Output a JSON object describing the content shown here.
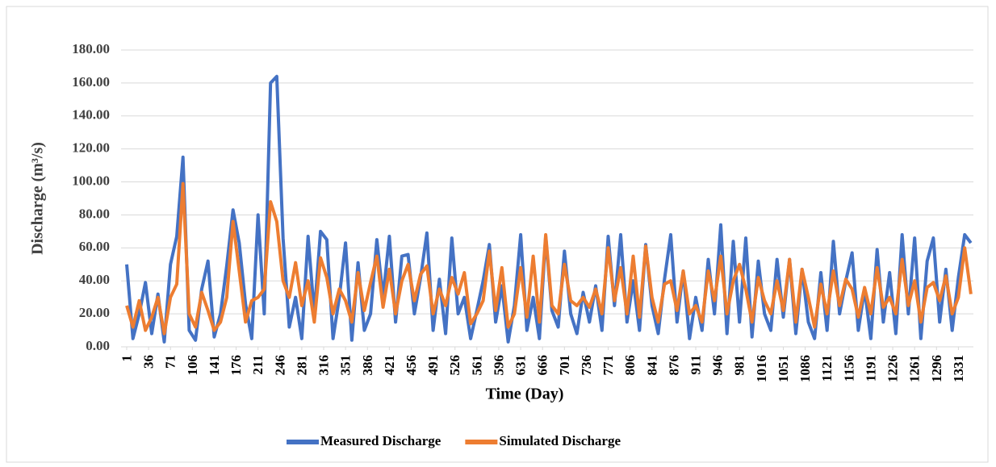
{
  "chart_data": {
    "type": "line",
    "y_label": "Discharge (m³/s)",
    "x_label": "Time (Day)",
    "x": [
      1,
      11,
      21,
      31,
      41,
      51,
      61,
      71,
      81,
      91,
      101,
      111,
      121,
      131,
      141,
      151,
      161,
      171,
      181,
      191,
      201,
      211,
      221,
      231,
      241,
      251,
      261,
      271,
      281,
      291,
      301,
      311,
      321,
      331,
      341,
      351,
      361,
      371,
      381,
      391,
      401,
      411,
      421,
      431,
      441,
      451,
      461,
      471,
      481,
      491,
      501,
      511,
      521,
      531,
      541,
      551,
      561,
      571,
      581,
      591,
      601,
      611,
      621,
      631,
      641,
      651,
      661,
      671,
      681,
      691,
      701,
      711,
      721,
      731,
      741,
      751,
      761,
      771,
      781,
      791,
      801,
      811,
      821,
      831,
      841,
      851,
      861,
      871,
      881,
      891,
      901,
      911,
      921,
      931,
      941,
      951,
      961,
      971,
      981,
      991,
      1001,
      1011,
      1021,
      1031,
      1041,
      1051,
      1061,
      1071,
      1081,
      1091,
      1101,
      1111,
      1121,
      1131,
      1141,
      1151,
      1161,
      1171,
      1181,
      1191,
      1201,
      1211,
      1221,
      1231,
      1241,
      1251,
      1261,
      1271,
      1281,
      1291,
      1301,
      1311,
      1321,
      1331,
      1341,
      1351
    ],
    "series": [
      {
        "name": "Measured Discharge",
        "color": "#4472c4",
        "values": [
          50,
          5,
          20,
          39,
          8,
          32,
          3,
          50,
          67,
          115,
          10,
          4,
          35,
          52,
          6,
          20,
          49,
          83,
          63,
          26,
          5,
          80,
          20,
          160,
          164,
          66,
          12,
          30,
          5,
          67,
          20,
          70,
          65,
          5,
          30,
          63,
          4,
          51,
          10,
          20,
          65,
          30,
          67,
          15,
          55,
          56,
          20,
          42,
          69,
          10,
          41,
          8,
          66,
          20,
          30,
          5,
          22,
          40,
          62,
          15,
          37,
          3,
          25,
          68,
          10,
          30,
          5,
          67,
          22,
          12,
          58,
          20,
          8,
          33,
          15,
          37,
          10,
          67,
          25,
          68,
          15,
          40,
          10,
          62,
          25,
          8,
          41,
          68,
          15,
          46,
          5,
          30,
          10,
          53,
          20,
          74,
          8,
          64,
          15,
          66,
          6,
          52,
          20,
          10,
          53,
          18,
          53,
          8,
          47,
          15,
          5,
          45,
          10,
          64,
          20,
          40,
          57,
          10,
          35,
          5,
          59,
          15,
          45,
          8,
          68,
          20,
          66,
          5,
          52,
          66,
          15,
          47,
          10,
          42,
          68,
          63
        ]
      },
      {
        "name": "Simulated Discharge",
        "color": "#ed7d31",
        "values": [
          25,
          12,
          28,
          10,
          18,
          30,
          8,
          30,
          38,
          99,
          20,
          12,
          33,
          22,
          10,
          15,
          30,
          76,
          46,
          15,
          28,
          30,
          35,
          88,
          76,
          40,
          30,
          51,
          25,
          40,
          15,
          54,
          42,
          20,
          35,
          28,
          15,
          45,
          22,
          39,
          55,
          24,
          47,
          20,
          40,
          50,
          28,
          44,
          49,
          20,
          35,
          25,
          42,
          32,
          45,
          14,
          20,
          28,
          58,
          22,
          48,
          12,
          20,
          48,
          18,
          55,
          15,
          68,
          25,
          20,
          50,
          28,
          25,
          30,
          24,
          35,
          20,
          60,
          28,
          48,
          20,
          55,
          18,
          61,
          30,
          15,
          38,
          40,
          22,
          46,
          20,
          25,
          15,
          46,
          28,
          55,
          20,
          40,
          50,
          35,
          15,
          42,
          28,
          20,
          40,
          22,
          53,
          15,
          47,
          30,
          12,
          38,
          20,
          46,
          25,
          41,
          35,
          18,
          36,
          20,
          48,
          24,
          30,
          20,
          53,
          25,
          40,
          15,
          36,
          39,
          28,
          43,
          20,
          30,
          60,
          32
        ]
      }
    ],
    "xlim": [
      -8,
      1355
    ],
    "xticks": [
      1,
      36,
      71,
      106,
      141,
      176,
      211,
      246,
      281,
      316,
      351,
      386,
      421,
      456,
      491,
      526,
      561,
      596,
      631,
      666,
      701,
      736,
      771,
      806,
      841,
      876,
      911,
      946,
      981,
      1016,
      1051,
      1086,
      1121,
      1156,
      1191,
      1226,
      1261,
      1296,
      1331
    ],
    "ylim": [
      0,
      180
    ],
    "yticks": [
      {
        "value": 0,
        "label": "0.00"
      },
      {
        "value": 20,
        "label": "20.00"
      },
      {
        "value": 40,
        "label": "40.00"
      },
      {
        "value": 60,
        "label": "60.00"
      },
      {
        "value": 80,
        "label": "80.00"
      },
      {
        "value": 100,
        "label": "100.00"
      },
      {
        "value": 120,
        "label": "120.00"
      },
      {
        "value": 140,
        "label": "140.00"
      },
      {
        "value": 160,
        "label": "160.00"
      },
      {
        "value": 180,
        "label": "180.00"
      }
    ],
    "grid": true,
    "legend": "bottom"
  }
}
